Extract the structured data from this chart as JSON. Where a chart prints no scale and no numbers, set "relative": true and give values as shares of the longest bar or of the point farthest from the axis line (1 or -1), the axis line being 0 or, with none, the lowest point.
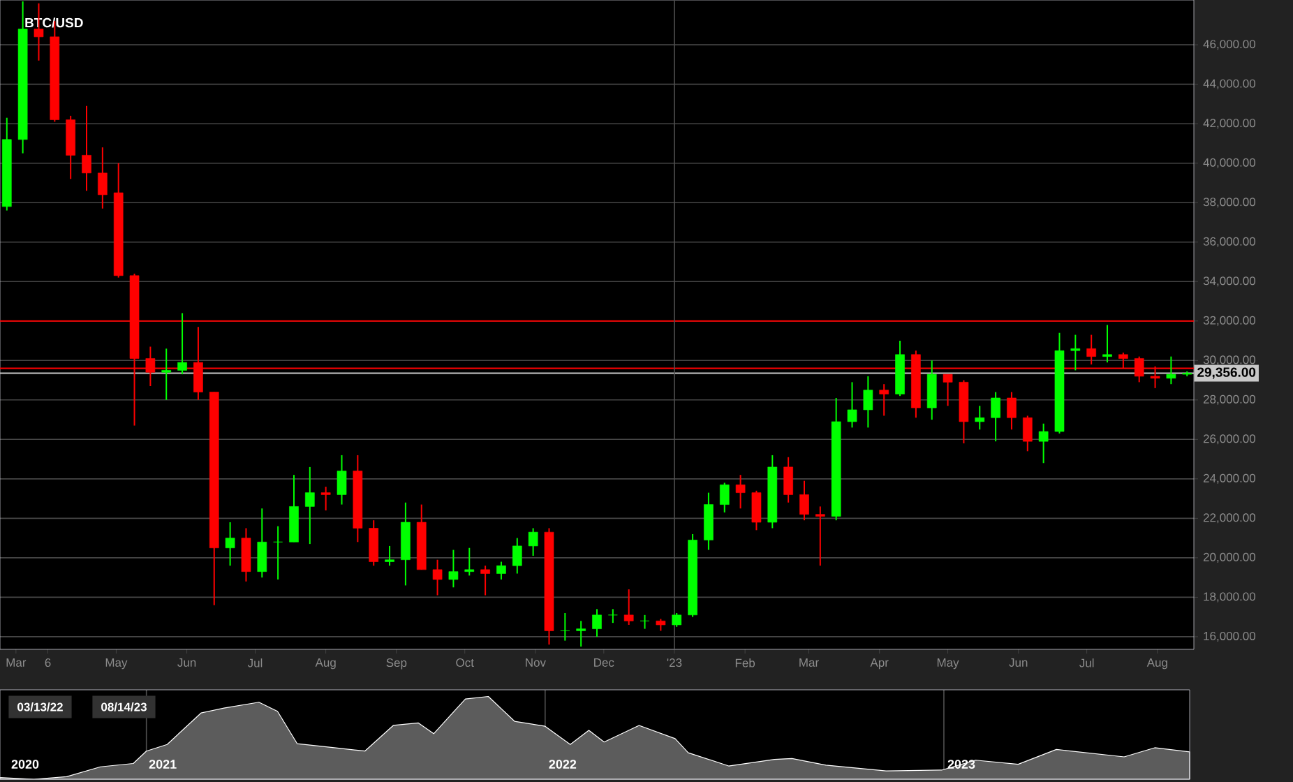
{
  "chart_data": [
    {
      "type": "candlestick",
      "title": "BTC/USD",
      "x": [
        "2022-03-14",
        "2022-03-21",
        "2022-03-28",
        "2022-04-04",
        "2022-04-11",
        "2022-04-18",
        "2022-04-25",
        "2022-05-02",
        "2022-05-09",
        "2022-05-16",
        "2022-05-23",
        "2022-05-30",
        "2022-06-06",
        "2022-06-13",
        "2022-06-20",
        "2022-06-27",
        "2022-07-04",
        "2022-07-11",
        "2022-07-18",
        "2022-07-25",
        "2022-08-01",
        "2022-08-08",
        "2022-08-15",
        "2022-08-22",
        "2022-08-29",
        "2022-09-05",
        "2022-09-12",
        "2022-09-19",
        "2022-09-26",
        "2022-10-03",
        "2022-10-10",
        "2022-10-17",
        "2022-10-24",
        "2022-10-31",
        "2022-11-07",
        "2022-11-14",
        "2022-11-21",
        "2022-11-28",
        "2022-12-05",
        "2022-12-12",
        "2022-12-19",
        "2022-12-26",
        "2023-01-02",
        "2023-01-09",
        "2023-01-16",
        "2023-01-23",
        "2023-01-30",
        "2023-02-06",
        "2023-02-13",
        "2023-02-20",
        "2023-02-27",
        "2023-03-06",
        "2023-03-13",
        "2023-03-20",
        "2023-03-27",
        "2023-04-03",
        "2023-04-10",
        "2023-04-17",
        "2023-04-24",
        "2023-05-01",
        "2023-05-08",
        "2023-05-15",
        "2023-05-22",
        "2023-05-29",
        "2023-06-05",
        "2023-06-12",
        "2023-06-19",
        "2023-06-26",
        "2023-07-03",
        "2023-07-10",
        "2023-07-17",
        "2023-07-24",
        "2023-07-31",
        "2023-08-07",
        "2023-08-14"
      ],
      "ohlc": [
        [
          37800,
          42300,
          37600,
          41200
        ],
        [
          41200,
          48200,
          40500,
          46800
        ],
        [
          46800,
          48100,
          45200,
          46400
        ],
        [
          46400,
          47200,
          42100,
          42200
        ],
        [
          42200,
          42400,
          39200,
          40400
        ],
        [
          40400,
          42900,
          38600,
          39500
        ],
        [
          39500,
          40800,
          37700,
          38400
        ],
        [
          38500,
          40000,
          34200,
          34300
        ],
        [
          34300,
          34400,
          26700,
          30100
        ],
        [
          30100,
          30700,
          28700,
          29400
        ],
        [
          29400,
          30600,
          28000,
          29500
        ],
        [
          29500,
          32400,
          29300,
          29900
        ],
        [
          29900,
          31700,
          28000,
          28400
        ],
        [
          28400,
          28400,
          17600,
          20500
        ],
        [
          20500,
          21800,
          19600,
          21000
        ],
        [
          21000,
          21500,
          18800,
          19300
        ],
        [
          19300,
          22500,
          19000,
          20800
        ],
        [
          20800,
          21600,
          18900,
          20800
        ],
        [
          20800,
          24200,
          20800,
          22600
        ],
        [
          22600,
          24600,
          20700,
          23300
        ],
        [
          23300,
          23600,
          22400,
          23200
        ],
        [
          23200,
          25200,
          22700,
          24400
        ],
        [
          24400,
          25200,
          20800,
          21500
        ],
        [
          21500,
          21900,
          19600,
          19800
        ],
        [
          19800,
          20600,
          19600,
          19900
        ],
        [
          19900,
          22800,
          18600,
          21800
        ],
        [
          21800,
          22700,
          19400,
          19400
        ],
        [
          19400,
          19900,
          18100,
          18900
        ],
        [
          18900,
          20400,
          18500,
          19300
        ],
        [
          19300,
          20500,
          19100,
          19400
        ],
        [
          19400,
          19600,
          18100,
          19200
        ],
        [
          19200,
          19800,
          18900,
          19600
        ],
        [
          19600,
          21000,
          19200,
          20600
        ],
        [
          20600,
          21500,
          20100,
          21300
        ],
        [
          21300,
          21500,
          15600,
          16300
        ],
        [
          16300,
          17200,
          15800,
          16300
        ],
        [
          16300,
          16800,
          15500,
          16400
        ],
        [
          16400,
          17400,
          16000,
          17100
        ],
        [
          17100,
          17400,
          16700,
          17100
        ],
        [
          17100,
          18400,
          16600,
          16800
        ],
        [
          16800,
          17100,
          16400,
          16800
        ],
        [
          16800,
          16900,
          16300,
          16600
        ],
        [
          16600,
          17200,
          16500,
          17100
        ],
        [
          17100,
          21200,
          17000,
          20900
        ],
        [
          20900,
          23300,
          20400,
          22700
        ],
        [
          22700,
          23800,
          22300,
          23700
        ],
        [
          23700,
          24200,
          22500,
          23300
        ],
        [
          23300,
          23400,
          21400,
          21800
        ],
        [
          21800,
          25200,
          21500,
          24600
        ],
        [
          24600,
          25100,
          22800,
          23200
        ],
        [
          23200,
          23900,
          21900,
          22200
        ],
        [
          22200,
          22600,
          19600,
          22100
        ],
        [
          22100,
          28100,
          21900,
          26900
        ],
        [
          26900,
          28900,
          26600,
          27500
        ],
        [
          27500,
          29200,
          26600,
          28500
        ],
        [
          28500,
          28800,
          27200,
          28300
        ],
        [
          28300,
          31000,
          28200,
          30300
        ],
        [
          30300,
          30500,
          27100,
          27600
        ],
        [
          27600,
          30000,
          27000,
          29300
        ],
        [
          29300,
          29300,
          27700,
          28900
        ],
        [
          28900,
          29000,
          25800,
          26900
        ],
        [
          26900,
          27700,
          26500,
          27100
        ],
        [
          27100,
          28400,
          25900,
          28100
        ],
        [
          28100,
          28400,
          26500,
          27100
        ],
        [
          27100,
          27200,
          25400,
          25900
        ],
        [
          25900,
          26800,
          24800,
          26400
        ],
        [
          26400,
          31400,
          26300,
          30500
        ],
        [
          30500,
          31300,
          29500,
          30600
        ],
        [
          30600,
          31300,
          29800,
          30200
        ],
        [
          30200,
          31800,
          29900,
          30300
        ],
        [
          30300,
          30400,
          29600,
          30100
        ],
        [
          30100,
          30200,
          28900,
          29200
        ],
        [
          29200,
          29700,
          28600,
          29100
        ],
        [
          29100,
          30200,
          28800,
          29300
        ],
        [
          29300,
          29450,
          29200,
          29356
        ]
      ],
      "colors": [
        "#00ff00",
        "#00ff00",
        "#ff0000",
        "#ff0000",
        "#ff0000",
        "#ff0000",
        "#ff0000",
        "#ff0000",
        "#ff0000",
        "#ff0000",
        "#00ff00",
        "#00ff00",
        "#ff0000",
        "#ff0000",
        "#00ff00",
        "#ff0000",
        "#00ff00",
        "#00ff00",
        "#00ff00",
        "#00ff00",
        "#ff0000",
        "#00ff00",
        "#ff0000",
        "#ff0000",
        "#00ff00",
        "#00ff00",
        "#ff0000",
        "#ff0000",
        "#00ff00",
        "#00ff00",
        "#ff0000",
        "#00ff00",
        "#00ff00",
        "#00ff00",
        "#ff0000",
        "#00ff00",
        "#00ff00",
        "#00ff00",
        "#00ff00",
        "#ff0000",
        "#00ff00",
        "#ff0000",
        "#00ff00",
        "#00ff00",
        "#00ff00",
        "#00ff00",
        "#ff0000",
        "#ff0000",
        "#00ff00",
        "#ff0000",
        "#ff0000",
        "#ff0000",
        "#00ff00",
        "#00ff00",
        "#00ff00",
        "#ff0000",
        "#00ff00",
        "#ff0000",
        "#00ff00",
        "#ff0000",
        "#ff0000",
        "#00ff00",
        "#00ff00",
        "#ff0000",
        "#ff0000",
        "#00ff00",
        "#00ff00",
        "#00ff00",
        "#ff0000",
        "#00ff00",
        "#ff0000",
        "#ff0000",
        "#ff0000",
        "#00ff00",
        "#00ff00"
      ],
      "xlim": [
        "2022-03-11",
        "2023-08-17"
      ],
      "xticks": [
        {
          "value": "2022-03-18",
          "label": "Mar"
        },
        {
          "value": "2022-04-01",
          "label": "6"
        },
        {
          "value": "2022-05-01",
          "label": "May"
        },
        {
          "value": "2022-06-01",
          "label": "Jun"
        },
        {
          "value": "2022-07-01",
          "label": "Jul"
        },
        {
          "value": "2022-08-01",
          "label": "Aug"
        },
        {
          "value": "2022-09-01",
          "label": "Sep"
        },
        {
          "value": "2022-10-01",
          "label": "Oct"
        },
        {
          "value": "2022-11-01",
          "label": "Nov"
        },
        {
          "value": "2022-12-01",
          "label": "Dec"
        },
        {
          "value": "2023-01-01",
          "label": "'23"
        },
        {
          "value": "2023-02-01",
          "label": "Feb"
        },
        {
          "value": "2023-03-01",
          "label": "Mar"
        },
        {
          "value": "2023-04-01",
          "label": "Apr"
        },
        {
          "value": "2023-05-01",
          "label": "May"
        },
        {
          "value": "2023-06-01",
          "label": "Jun"
        },
        {
          "value": "2023-07-01",
          "label": "Jul"
        },
        {
          "value": "2023-08-01",
          "label": "Aug"
        }
      ],
      "ylim": [
        15360,
        48270
      ],
      "yticks": [
        {
          "value": 16000,
          "label": "16,000.00"
        },
        {
          "value": 18000,
          "label": "18,000.00"
        },
        {
          "value": 20000,
          "label": "20,000.00"
        },
        {
          "value": 22000,
          "label": "22,000.00"
        },
        {
          "value": 24000,
          "label": "24,000.00"
        },
        {
          "value": 26000,
          "label": "26,000.00"
        },
        {
          "value": 28000,
          "label": "28,000.00"
        },
        {
          "value": 30000,
          "label": "30,000.00"
        },
        {
          "value": 32000,
          "label": "32,000.00"
        },
        {
          "value": 34000,
          "label": "34,000.00"
        },
        {
          "value": 36000,
          "label": "36,000.00"
        },
        {
          "value": 38000,
          "label": "38,000.00"
        },
        {
          "value": 40000,
          "label": "40,000.00"
        },
        {
          "value": 42000,
          "label": "42,000.00"
        },
        {
          "value": 44000,
          "label": "44,000.00"
        },
        {
          "value": 46000,
          "label": "46,000.00"
        }
      ],
      "grid": "y",
      "ref_lines": [
        {
          "axis": "y",
          "value": 32000,
          "color": "#ff0000"
        },
        {
          "axis": "y",
          "value": 29600,
          "color": "#ff0000"
        },
        {
          "axis": "y",
          "value": 29356,
          "label": "29,356.00",
          "color": "#c8c8c8"
        },
        {
          "axis": "x",
          "value": "2023-01-01",
          "color": "#505050"
        }
      ]
    },
    {
      "type": "area",
      "relative": true,
      "x": [
        "2020-08-20",
        "2020-09-20",
        "2020-10-20",
        "2020-11-20",
        "2020-12-20",
        "2021-01-01",
        "2021-01-20",
        "2021-02-20",
        "2021-03-13",
        "2021-04-14",
        "2021-05-01",
        "2021-05-19",
        "2021-06-22",
        "2021-07-20",
        "2021-08-15",
        "2021-09-07",
        "2021-09-21",
        "2021-10-20",
        "2021-11-10",
        "2021-12-04",
        "2022-01-01",
        "2022-01-24",
        "2022-02-10",
        "2022-02-24",
        "2022-03-28",
        "2022-04-30",
        "2022-05-12",
        "2022-06-18",
        "2022-07-30",
        "2022-08-15",
        "2022-09-15",
        "2022-11-09",
        "2022-12-30",
        "2023-01-30",
        "2023-03-10",
        "2023-04-14",
        "2023-06-15",
        "2023-07-13",
        "2023-08-14"
      ],
      "values": [
        0.02,
        0.0,
        0.03,
        0.15,
        0.19,
        0.34,
        0.42,
        0.8,
        0.86,
        0.93,
        0.82,
        0.43,
        0.38,
        0.34,
        0.65,
        0.68,
        0.55,
        0.97,
        1.0,
        0.7,
        0.64,
        0.42,
        0.59,
        0.45,
        0.65,
        0.49,
        0.32,
        0.16,
        0.24,
        0.25,
        0.17,
        0.1,
        0.11,
        0.23,
        0.18,
        0.36,
        0.27,
        0.38,
        0.33
      ],
      "color": "#5c5c5c",
      "xlim": [
        "2020-08-20",
        "2023-08-14"
      ],
      "xticks": [
        {
          "value": "2020-09-12",
          "label": "2020"
        },
        {
          "value": "2021-01-16",
          "label": "2021"
        },
        {
          "value": "2022-01-17",
          "label": "2022"
        },
        {
          "value": "2023-01-17",
          "label": "2023"
        }
      ],
      "ref_lines": [
        {
          "axis": "x",
          "value": "2021-01-01",
          "color": "#505050"
        },
        {
          "axis": "x",
          "value": "2022-01-01",
          "color": "#505050"
        },
        {
          "axis": "x",
          "value": "2023-01-01",
          "color": "#505050"
        }
      ],
      "annotations": [
        "03/13/22",
        "08/14/23"
      ]
    }
  ]
}
